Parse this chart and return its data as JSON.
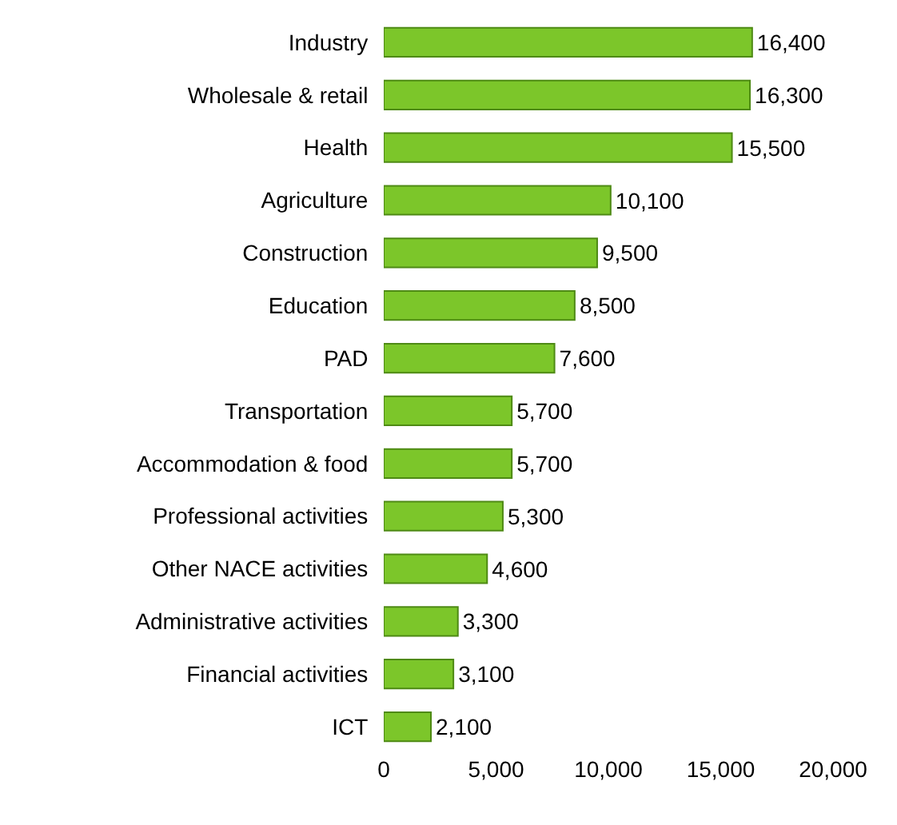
{
  "chart_data": {
    "type": "bar",
    "orientation": "horizontal",
    "categories": [
      "Industry",
      "Wholesale & retail",
      "Health",
      "Agriculture",
      "Construction",
      "Education",
      "PAD",
      "Transportation",
      "Accommodation & food",
      "Professional activities",
      "Other NACE activities",
      "Administrative activities",
      "Financial activities",
      "ICT"
    ],
    "values": [
      16400,
      16300,
      15500,
      10100,
      9500,
      8500,
      7600,
      5700,
      5700,
      5300,
      4600,
      3300,
      3100,
      2100
    ],
    "value_labels": [
      "16,400",
      "16,300",
      "15,500",
      "10,100",
      "9,500",
      "8,500",
      "7,600",
      "5,700",
      "5,700",
      "5,300",
      "4,600",
      "3,300",
      "3,100",
      "2,100"
    ],
    "color": "#7cc62a",
    "xlim": [
      0,
      20000
    ],
    "xticks": [
      0,
      {
        "value": 5000,
        "label": "5,000"
      },
      {
        "value": 10000,
        "label": "10,000"
      },
      {
        "value": 15000,
        "label": "15,000"
      },
      {
        "value": 20000,
        "label": "20,000"
      }
    ],
    "grid": false
  }
}
